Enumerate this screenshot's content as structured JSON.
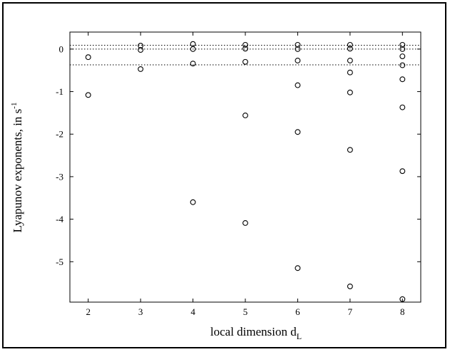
{
  "chart_data": {
    "type": "scatter",
    "xlabel": "local dimension d",
    "xlabel_sub": "L",
    "ylabel": "Lyapunov exponents, in s",
    "ylabel_sup": "-1",
    "xlim": [
      1.65,
      8.35
    ],
    "ylim": [
      -5.95,
      0.4
    ],
    "x_ticks": [
      2,
      3,
      4,
      5,
      6,
      7,
      8
    ],
    "y_ticks": [
      0,
      -1,
      -2,
      -3,
      -4,
      -5
    ],
    "reference_lines": [
      0.09,
      0.0,
      -0.37
    ],
    "marker": "open-circle",
    "grid": false,
    "points": [
      {
        "x": 2,
        "y": -0.19
      },
      {
        "x": 2,
        "y": -1.08
      },
      {
        "x": 3,
        "y": 0.08
      },
      {
        "x": 3,
        "y": -0.02
      },
      {
        "x": 3,
        "y": -0.47
      },
      {
        "x": 4,
        "y": 0.12
      },
      {
        "x": 4,
        "y": 0.0
      },
      {
        "x": 4,
        "y": -0.34
      },
      {
        "x": 4,
        "y": -3.6
      },
      {
        "x": 5,
        "y": 0.1
      },
      {
        "x": 5,
        "y": 0.01
      },
      {
        "x": 5,
        "y": -0.3
      },
      {
        "x": 5,
        "y": -1.56
      },
      {
        "x": 5,
        "y": -4.09
      },
      {
        "x": 6,
        "y": 0.1
      },
      {
        "x": 6,
        "y": 0.0
      },
      {
        "x": 6,
        "y": -0.27
      },
      {
        "x": 6,
        "y": -0.85
      },
      {
        "x": 6,
        "y": -1.95
      },
      {
        "x": 6,
        "y": -5.15
      },
      {
        "x": 7,
        "y": 0.1
      },
      {
        "x": 7,
        "y": 0.01
      },
      {
        "x": 7,
        "y": -0.27
      },
      {
        "x": 7,
        "y": -0.55
      },
      {
        "x": 7,
        "y": -1.02
      },
      {
        "x": 7,
        "y": -2.37
      },
      {
        "x": 7,
        "y": -5.58
      },
      {
        "x": 8,
        "y": 0.1
      },
      {
        "x": 8,
        "y": 0.0
      },
      {
        "x": 8,
        "y": -0.17
      },
      {
        "x": 8,
        "y": -0.38
      },
      {
        "x": 8,
        "y": -0.71
      },
      {
        "x": 8,
        "y": -1.37
      },
      {
        "x": 8,
        "y": -2.87
      },
      {
        "x": 8,
        "y": -5.88
      }
    ]
  }
}
